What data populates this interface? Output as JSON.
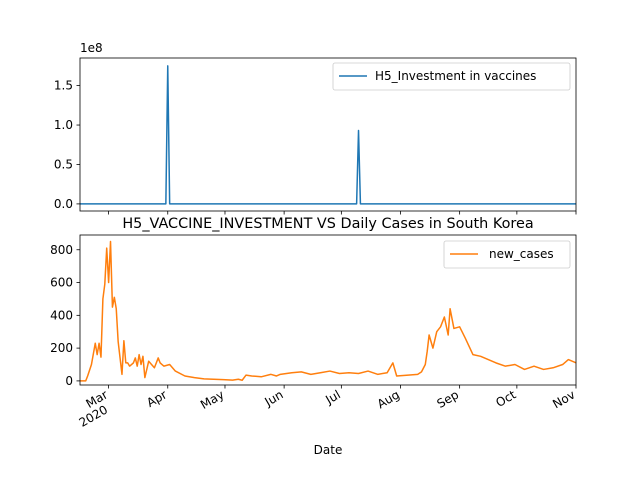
{
  "chart_data": [
    {
      "type": "line",
      "title": "",
      "xlabel": "",
      "ylabel": "",
      "y_scale_label": "1e8",
      "ylim": [
        -9000000,
        185000000
      ],
      "yticks": [
        0,
        50000000,
        100000000,
        150000000
      ],
      "ytick_labels": [
        "0.0",
        "0.5",
        "1.0",
        "1.5"
      ],
      "legend_position": "upper right",
      "series": [
        {
          "name": "H5_Investment in vaccines",
          "color": "#1f77b4",
          "x": [
            "2020-02-15",
            "2020-03-30",
            "2020-03-31",
            "2020-04-01",
            "2020-04-02",
            "2020-07-08",
            "2020-07-09",
            "2020-07-10",
            "2020-07-11",
            "2020-11-01"
          ],
          "y": [
            0,
            0,
            0,
            175000000,
            0,
            0,
            0,
            93000000,
            0,
            0
          ]
        }
      ]
    },
    {
      "type": "line",
      "title": "H5_VACCINE_INVESTMENT VS Daily Cases in South Korea",
      "xlabel": "Date",
      "ylabel": "",
      "ylim": [
        -45000,
        900000
      ],
      "yticks": [
        0,
        200,
        400,
        600,
        800
      ],
      "yticks_values": [
        0,
        200,
        400,
        600,
        800
      ],
      "ytick_labels": [
        "0",
        "200",
        "400",
        "600",
        "800"
      ],
      "xticks": [
        {
          "date": "2020-03-01",
          "label": "Mar",
          "sublabel": "2020"
        },
        {
          "date": "2020-04-01",
          "label": "Apr"
        },
        {
          "date": "2020-05-01",
          "label": "May"
        },
        {
          "date": "2020-06-01",
          "label": "Jun"
        },
        {
          "date": "2020-07-01",
          "label": "Jul"
        },
        {
          "date": "2020-08-01",
          "label": "Aug"
        },
        {
          "date": "2020-09-01",
          "label": "Sep"
        },
        {
          "date": "2020-10-01",
          "label": "Oct"
        },
        {
          "date": "2020-11-01",
          "label": "Nov"
        }
      ],
      "xlim": [
        "2020-02-15",
        "2020-11-01"
      ],
      "legend_position": "upper right",
      "series": [
        {
          "name": "new_cases",
          "color": "#ff7f0e",
          "x": [
            "2020-02-15",
            "2020-02-18",
            "2020-02-19",
            "2020-02-21",
            "2020-02-23",
            "2020-02-24",
            "2020-02-25",
            "2020-02-26",
            "2020-02-27",
            "2020-02-28",
            "2020-02-29",
            "2020-03-01",
            "2020-03-02",
            "2020-03-03",
            "2020-03-04",
            "2020-03-05",
            "2020-03-06",
            "2020-03-07",
            "2020-03-08",
            "2020-03-09",
            "2020-03-10",
            "2020-03-11",
            "2020-03-12",
            "2020-03-13",
            "2020-03-14",
            "2020-03-15",
            "2020-03-16",
            "2020-03-17",
            "2020-03-18",
            "2020-03-19",
            "2020-03-20",
            "2020-03-22",
            "2020-03-25",
            "2020-03-27",
            "2020-03-28",
            "2020-03-29",
            "2020-03-30",
            "2020-04-02",
            "2020-04-05",
            "2020-04-10",
            "2020-04-15",
            "2020-04-20",
            "2020-04-25",
            "2020-04-30",
            "2020-05-05",
            "2020-05-08",
            "2020-05-10",
            "2020-05-12",
            "2020-05-15",
            "2020-05-20",
            "2020-05-25",
            "2020-05-28",
            "2020-05-30",
            "2020-06-05",
            "2020-06-10",
            "2020-06-15",
            "2020-06-20",
            "2020-06-25",
            "2020-06-30",
            "2020-07-05",
            "2020-07-10",
            "2020-07-15",
            "2020-07-20",
            "2020-07-25",
            "2020-07-28",
            "2020-07-30",
            "2020-08-05",
            "2020-08-10",
            "2020-08-12",
            "2020-08-14",
            "2020-08-15",
            "2020-08-16",
            "2020-08-18",
            "2020-08-20",
            "2020-08-22",
            "2020-08-24",
            "2020-08-26",
            "2020-08-27",
            "2020-08-29",
            "2020-09-01",
            "2020-09-04",
            "2020-09-08",
            "2020-09-12",
            "2020-09-16",
            "2020-09-20",
            "2020-09-25",
            "2020-09-30",
            "2020-10-05",
            "2020-10-10",
            "2020-10-15",
            "2020-10-20",
            "2020-10-25",
            "2020-10-28",
            "2020-10-30",
            "2020-11-01"
          ],
          "y": [
            0,
            0,
            30,
            100,
            230,
            160,
            230,
            145,
            500,
            590,
            810,
            600,
            850,
            450,
            510,
            440,
            240,
            140,
            40,
            245,
            110,
            110,
            90,
            100,
            110,
            140,
            90,
            160,
            100,
            150,
            20,
            120,
            80,
            140,
            110,
            100,
            90,
            100,
            60,
            30,
            20,
            12,
            10,
            8,
            5,
            10,
            4,
            35,
            30,
            25,
            40,
            30,
            40,
            50,
            55,
            40,
            50,
            60,
            45,
            50,
            45,
            60,
            40,
            50,
            110,
            30,
            35,
            40,
            55,
            100,
            180,
            280,
            200,
            300,
            330,
            390,
            280,
            440,
            320,
            330,
            260,
            160,
            150,
            130,
            110,
            90,
            100,
            70,
            90,
            70,
            80,
            100,
            130,
            120,
            110
          ]
        }
      ]
    }
  ]
}
